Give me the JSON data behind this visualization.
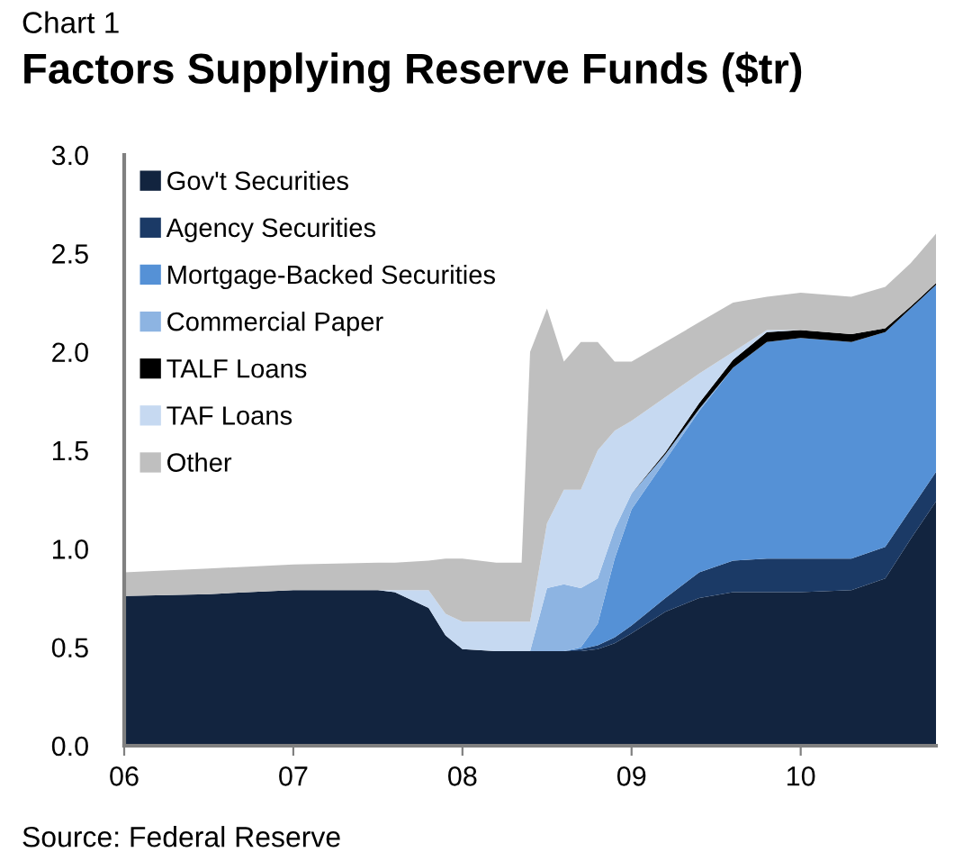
{
  "chart_data": {
    "type": "area",
    "stacked": true,
    "subtitle": "Chart 1",
    "title": "Factors Supplying Reserve Funds ($tr)",
    "annotations": [
      "Source: Federal Reserve"
    ],
    "x": [
      2006,
      2006.5,
      2007,
      2007.5,
      2007.6,
      2007.8,
      2007.9,
      2008.0,
      2008.2,
      2008.35,
      2008.4,
      2008.5,
      2008.6,
      2008.7,
      2008.8,
      2008.9,
      2009.0,
      2009.2,
      2009.4,
      2009.6,
      2009.8,
      2010.0,
      2010.3,
      2010.5,
      2010.65,
      2010.8
    ],
    "series": [
      {
        "name": "Gov't Securities",
        "color": "#12243f",
        "values": [
          0.76,
          0.77,
          0.79,
          0.79,
          0.78,
          0.7,
          0.56,
          0.49,
          0.48,
          0.48,
          0.48,
          0.48,
          0.48,
          0.48,
          0.49,
          0.52,
          0.57,
          0.68,
          0.75,
          0.78,
          0.78,
          0.78,
          0.79,
          0.85,
          1.05,
          1.24
        ]
      },
      {
        "name": "Agency Securities",
        "color": "#1b3a66",
        "values": [
          null,
          null,
          null,
          null,
          null,
          null,
          null,
          null,
          null,
          null,
          null,
          null,
          0,
          0.01,
          0.02,
          0.03,
          0.04,
          0.07,
          0.13,
          0.16,
          0.17,
          0.17,
          0.16,
          0.16,
          0.15,
          0.15
        ]
      },
      {
        "name": "Mortgage-Backed Securities",
        "color": "#5591d6",
        "values": [
          null,
          null,
          null,
          null,
          null,
          null,
          null,
          null,
          null,
          null,
          null,
          null,
          0,
          0.01,
          0.11,
          0.4,
          0.59,
          0.7,
          0.82,
          0.98,
          1.1,
          1.12,
          1.1,
          1.09,
          1.02,
          0.95
        ]
      },
      {
        "name": "Commercial Paper",
        "color": "#8db4e2",
        "values": [
          null,
          null,
          null,
          null,
          null,
          null,
          null,
          null,
          null,
          null,
          0,
          0.32,
          0.34,
          0.3,
          0.23,
          0.15,
          0.08,
          0.03,
          0.01,
          0,
          null,
          null,
          null,
          null,
          null,
          null
        ]
      },
      {
        "name": "TALF Loans",
        "color": "#000000",
        "values": [
          null,
          null,
          null,
          null,
          null,
          null,
          null,
          null,
          null,
          null,
          null,
          null,
          null,
          null,
          null,
          null,
          0,
          0.01,
          0.03,
          0.04,
          0.05,
          0.04,
          0.04,
          0.02,
          0.01,
          0.01
        ]
      },
      {
        "name": "TAF Loans",
        "color": "#c6d9f1",
        "values": [
          null,
          null,
          null,
          0,
          0.01,
          0.09,
          0.11,
          0.14,
          0.15,
          0.15,
          0.15,
          0.33,
          0.48,
          0.5,
          0.65,
          0.5,
          0.37,
          0.28,
          0.15,
          0.04,
          0.01,
          0,
          null,
          null,
          null,
          null
        ]
      },
      {
        "name": "Other",
        "color": "#bfbfbf",
        "values": [
          0.12,
          0.13,
          0.13,
          0.14,
          0.14,
          0.15,
          0.28,
          0.32,
          0.3,
          0.3,
          1.37,
          1.09,
          0.65,
          0.75,
          0.55,
          0.35,
          0.3,
          0.28,
          0.26,
          0.25,
          0.17,
          0.19,
          0.19,
          0.21,
          0.22,
          0.25
        ]
      }
    ],
    "xlim": [
      2006,
      2010.8
    ],
    "xticks": [
      {
        "value": 2006,
        "label": "06"
      },
      {
        "value": 2007,
        "label": "07"
      },
      {
        "value": 2008,
        "label": "08"
      },
      {
        "value": 2009,
        "label": "09"
      },
      {
        "value": 2010,
        "label": "10"
      }
    ],
    "ylim": [
      0,
      3.0
    ],
    "yticks": [
      {
        "value": 0,
        "label": "0.0"
      },
      {
        "value": 0.5,
        "label": "0.5"
      },
      {
        "value": 1.0,
        "label": "1.0"
      },
      {
        "value": 1.5,
        "label": "1.5"
      },
      {
        "value": 2.0,
        "label": "2.0"
      },
      {
        "value": 2.5,
        "label": "2.5"
      },
      {
        "value": 3.0,
        "label": "3.0"
      }
    ],
    "grid": false,
    "legend": "top left"
  }
}
